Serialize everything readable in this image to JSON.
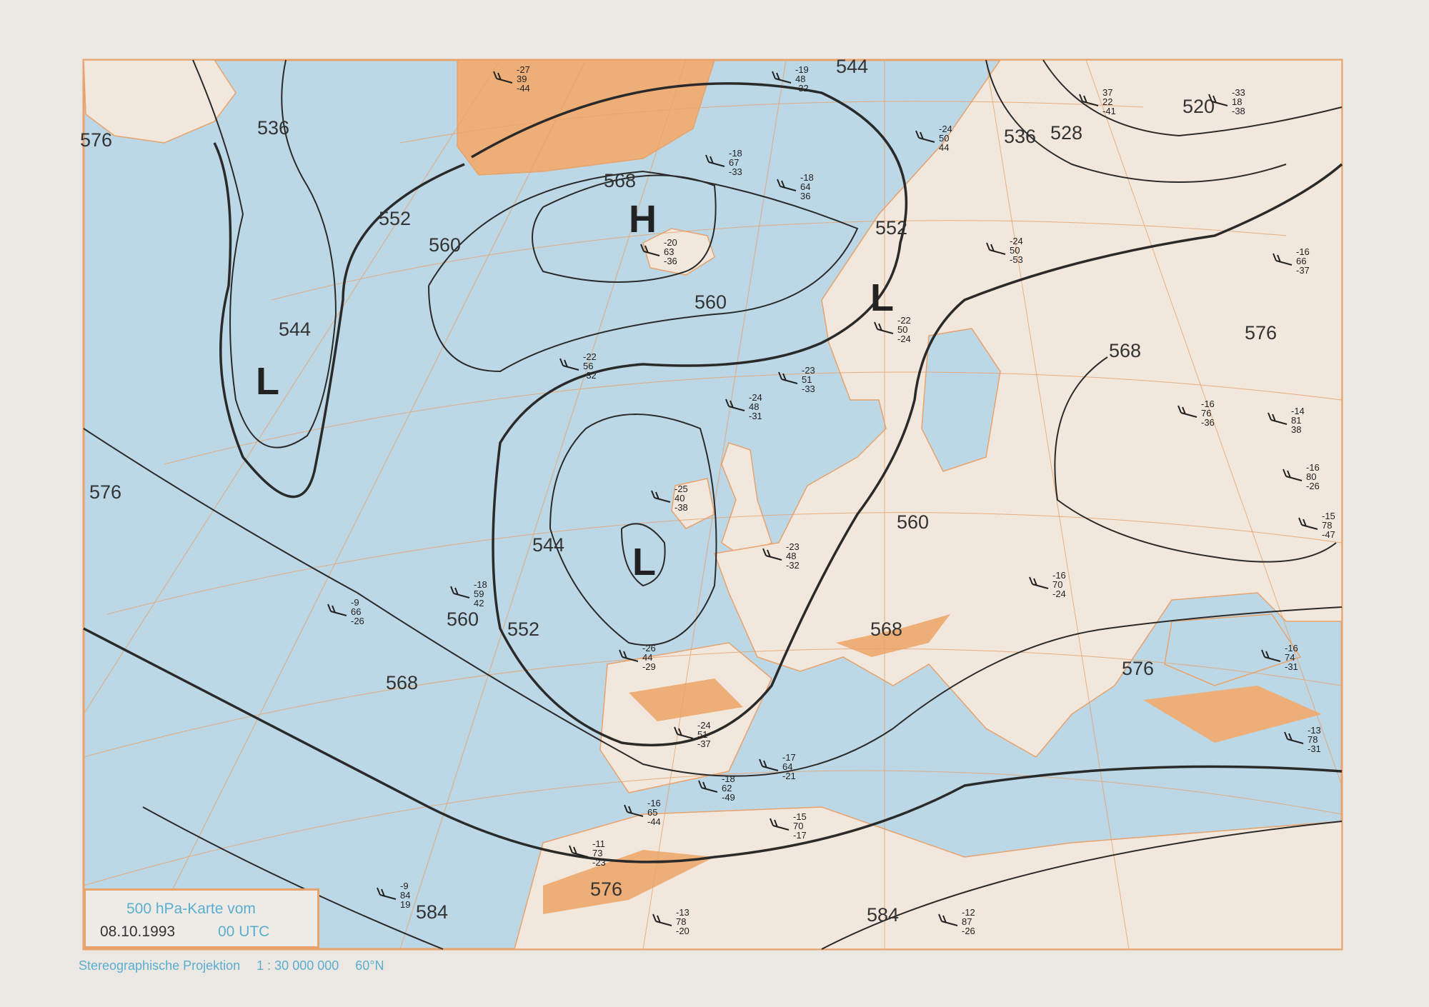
{
  "title": "500 hPa-Karte vom",
  "date": "08.10.1993",
  "time": "00 UTC",
  "projection": "Stereographische Projektion",
  "scale": "1 : 30 000 000",
  "standard_parallel": "60°N",
  "colors": {
    "sea": "#bcd8e6",
    "land": "#f1e7dc",
    "relief": "#eeae78",
    "grid": "#e8a26c",
    "contour": "#2a2a2a",
    "text_blue": "#5aaed0"
  },
  "pressure_systems": [
    "H",
    "L",
    "L",
    "L"
  ],
  "contour_labels": [
    "544",
    "536",
    "528",
    "536",
    "520",
    "568",
    "552",
    "560",
    "552",
    "560",
    "544",
    "576",
    "576",
    "544",
    "560",
    "552",
    "568",
    "560",
    "568",
    "576",
    "568",
    "576",
    "584",
    "584",
    "576"
  ],
  "stations": [
    [
      "-20",
      "63",
      "-36"
    ],
    [
      "-22",
      "56",
      "-32"
    ],
    [
      "-25",
      "40",
      "-38"
    ],
    [
      "-26",
      "44",
      "-29"
    ],
    [
      "-24",
      "51",
      "-37"
    ],
    [
      "-23",
      "51",
      "-33"
    ],
    [
      "-24",
      "48",
      "-31"
    ],
    [
      "-22",
      "50",
      "-24"
    ],
    [
      "-18",
      "59",
      "42"
    ],
    [
      "-9",
      "66",
      "-26"
    ],
    [
      "-16",
      "70",
      "-24"
    ],
    [
      "-12",
      "87",
      "-26"
    ],
    [
      "-13",
      "78",
      "-20"
    ],
    [
      "-11",
      "73",
      "-23"
    ],
    [
      "-16",
      "65",
      "-44"
    ],
    [
      "-15",
      "70",
      "-17"
    ],
    [
      "-16",
      "74",
      "-31"
    ],
    [
      "-13",
      "78",
      "-31"
    ],
    [
      "-27",
      "39",
      "-44"
    ],
    [
      "-19",
      "48",
      "-32"
    ],
    [
      "-18",
      "67",
      "-33"
    ],
    [
      "-18",
      "64",
      "36"
    ],
    [
      "-24",
      "50",
      "44"
    ],
    [
      "-24",
      "50",
      "-53"
    ],
    [
      "37",
      "22",
      "-41"
    ],
    [
      "-33",
      "18",
      "-38"
    ],
    [
      "-16",
      "66",
      "-37"
    ],
    [
      "-16",
      "76",
      "-36"
    ],
    [
      "-14",
      "81",
      "38"
    ],
    [
      "-16",
      "80",
      "-26"
    ],
    [
      "-15",
      "78",
      "-47"
    ],
    [
      "-9",
      "84",
      "19"
    ],
    [
      "-23",
      "48",
      "-32"
    ],
    [
      "-18",
      "62",
      "-49"
    ],
    [
      "-17",
      "64",
      "-21"
    ]
  ]
}
